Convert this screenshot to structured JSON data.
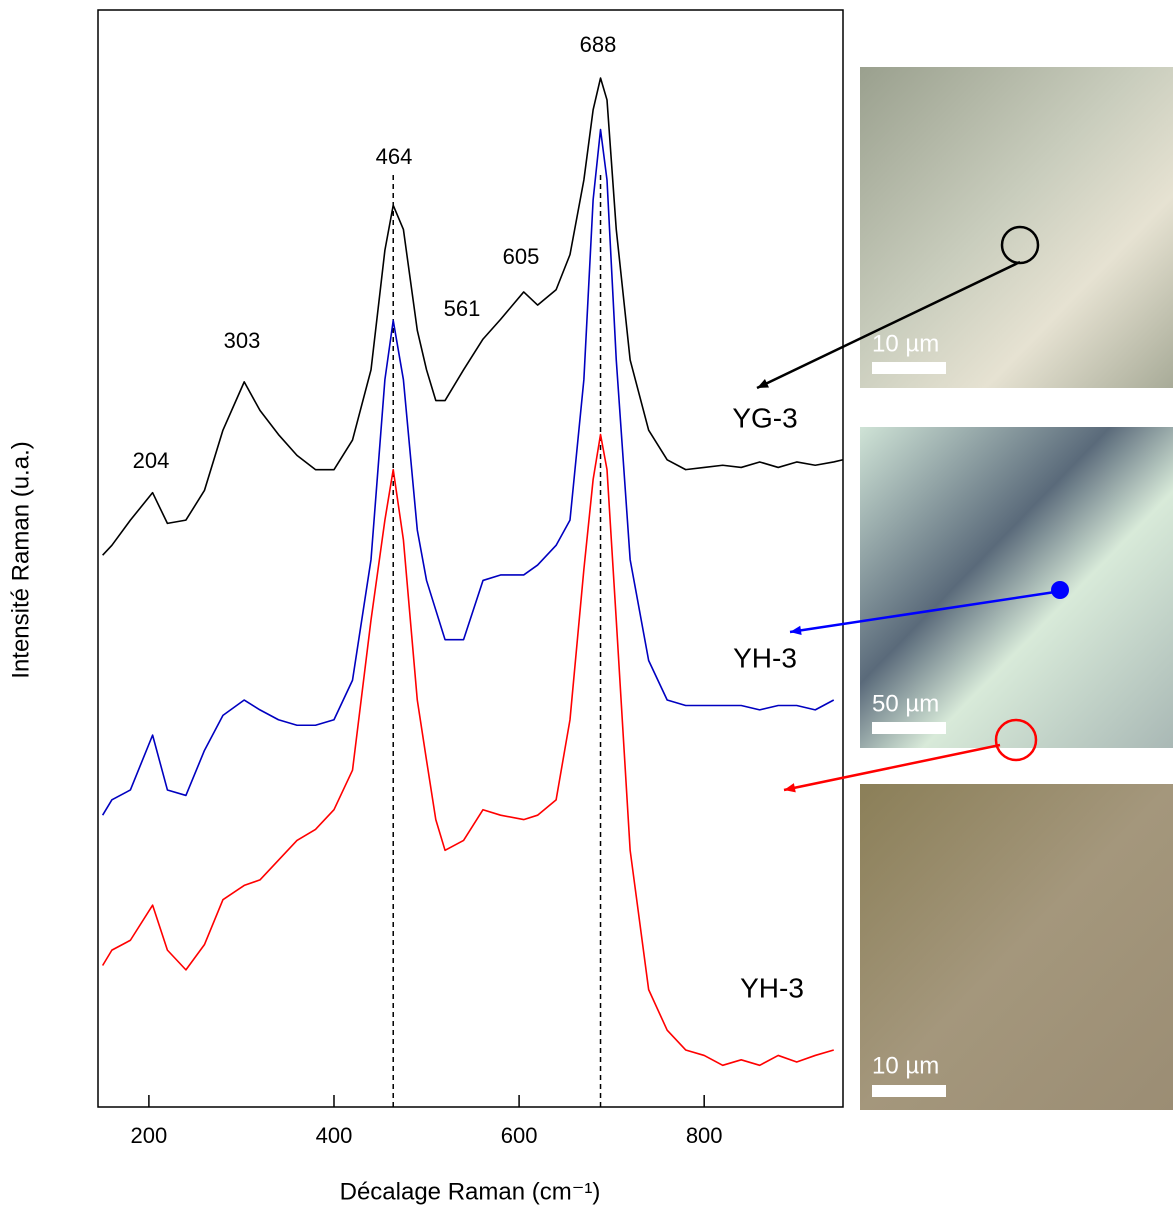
{
  "chart_data": {
    "type": "line",
    "x_label": "Décalage Raman (cm⁻¹)",
    "y_label": "Intensité Raman (u.a.)",
    "xlim": [
      145,
      950
    ],
    "xticks": [
      200,
      400,
      600,
      800
    ],
    "ylim": [
      0,
      100
    ],
    "x": [
      150,
      160,
      180,
      204,
      220,
      240,
      260,
      280,
      303,
      320,
      340,
      360,
      380,
      400,
      420,
      440,
      455,
      464,
      475,
      490,
      500,
      510,
      520,
      540,
      561,
      580,
      605,
      620,
      640,
      655,
      670,
      680,
      688,
      695,
      705,
      720,
      740,
      760,
      780,
      800,
      820,
      840,
      860,
      880,
      900,
      920,
      940,
      950
    ],
    "series": [
      {
        "name": "YG-3",
        "color": "#000000",
        "values": [
          50.3,
          51.2,
          53.5,
          56.0,
          53.2,
          53.5,
          56.2,
          61.7,
          66.1,
          63.5,
          61.3,
          59.4,
          58.1,
          58.1,
          60.8,
          67.2,
          78.1,
          82.2,
          80.0,
          70.8,
          67.2,
          64.4,
          64.4,
          67.2,
          70.0,
          71.8,
          74.3,
          73.1,
          74.5,
          77.7,
          84.5,
          90.9,
          93.8,
          91.8,
          80.0,
          68.1,
          61.7,
          59.0,
          58.1,
          58.3,
          58.5,
          58.3,
          58.8,
          58.3,
          58.8,
          58.5,
          58.8,
          59.0
        ]
      },
      {
        "name": "YH-3",
        "color": "#0000c0",
        "values": [
          26.6,
          28.0,
          28.9,
          33.9,
          28.9,
          28.4,
          32.5,
          35.7,
          37.1,
          36.2,
          35.3,
          34.8,
          34.8,
          35.3,
          38.9,
          49.9,
          66.3,
          71.7,
          66.3,
          52.6,
          48.0,
          45.3,
          42.6,
          42.6,
          48.0,
          48.5,
          48.5,
          49.4,
          51.2,
          53.5,
          66.3,
          82.7,
          89.1,
          84.5,
          68.1,
          49.9,
          40.7,
          37.1,
          36.6,
          36.6,
          36.6,
          36.6,
          36.2,
          36.6,
          36.6,
          36.2,
          37.1,
          null
        ]
      },
      {
        "name": "YH-3",
        "color": "#ff0000",
        "values": [
          12.9,
          14.3,
          15.2,
          18.4,
          14.3,
          12.5,
          14.8,
          18.9,
          20.2,
          20.7,
          22.5,
          24.3,
          25.3,
          27.1,
          30.7,
          44.4,
          53.5,
          58.1,
          51.7,
          37.1,
          31.6,
          26.2,
          23.4,
          24.3,
          27.1,
          26.6,
          26.2,
          26.6,
          28.0,
          35.3,
          49.0,
          57.2,
          61.3,
          58.1,
          44.4,
          23.4,
          10.7,
          7.0,
          5.2,
          4.7,
          3.8,
          4.3,
          3.8,
          4.7,
          4.1,
          4.7,
          5.2,
          null
        ]
      }
    ],
    "annotations": [
      "204",
      "303",
      "464",
      "561",
      "605",
      "688"
    ],
    "vlines": [
      464,
      688
    ],
    "images": [
      {
        "scale": "10 µm"
      },
      {
        "scale": "50 µm"
      },
      {
        "scale": "10 µm"
      }
    ]
  }
}
